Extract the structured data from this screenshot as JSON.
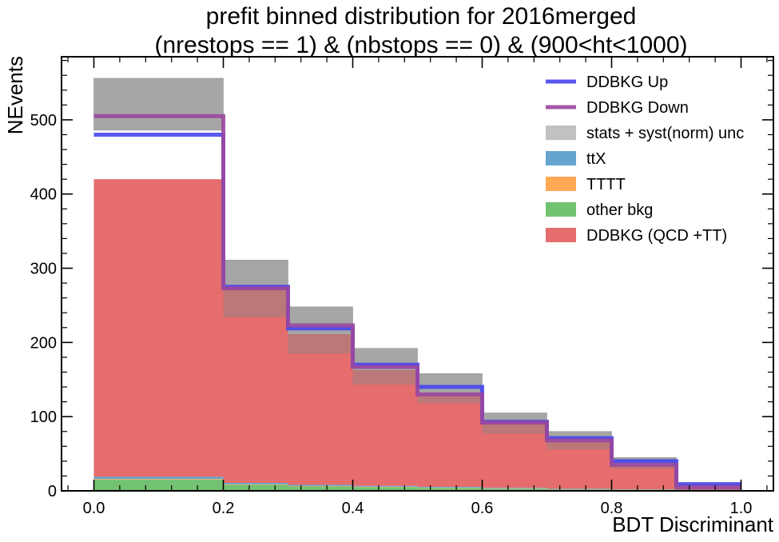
{
  "chart_data": {
    "type": "bar",
    "title_line1": "prefit binned distribution for 2016merged",
    "title_line2": "(nrestops == 1) & (nbstops == 0) & (900<ht<1000)",
    "xlabel": "BDT Discriminant",
    "ylabel": "NEvents",
    "xlim": [
      -0.05,
      1.05
    ],
    "ylim": [
      0,
      585
    ],
    "xticks": [
      0.0,
      0.2,
      0.4,
      0.6,
      0.8,
      1.0
    ],
    "xtick_labels": [
      "0.0",
      "0.2",
      "0.4",
      "0.6",
      "0.8",
      "1.0"
    ],
    "yticks": [
      0,
      100,
      200,
      300,
      400,
      500
    ],
    "ytick_labels": [
      "0",
      "100",
      "200",
      "300",
      "400",
      "500"
    ],
    "bin_edges": [
      0.0,
      0.2,
      0.3,
      0.4,
      0.5,
      0.6,
      0.7,
      0.8,
      0.9,
      1.0
    ],
    "legend_position": "top-right",
    "stack": [
      {
        "name": "other bkg",
        "color": "#6cc06c",
        "values": [
          15,
          8,
          6,
          5,
          4,
          3,
          2,
          1.5,
          0.8
        ]
      },
      {
        "name": "TTTT",
        "color": "#ffa64d",
        "values": [
          1,
          0.8,
          0.6,
          0.5,
          0.4,
          0.3,
          0.2,
          0.1,
          0.05
        ]
      },
      {
        "name": "ttX",
        "color": "#5fa0ca",
        "values": [
          3,
          2,
          1.5,
          1.2,
          1,
          0.8,
          0.6,
          0.4,
          0.2
        ]
      },
      {
        "name": "DDBKG (QCD +TT)",
        "color": "#e46767",
        "values": [
          401,
          262,
          203,
          156,
          126,
          88,
          64,
          32,
          3
        ]
      }
    ],
    "uncertainty": {
      "name": "stats + syst(norm) unc",
      "color": "#bebebe",
      "low": [
        486,
        234,
        185,
        143,
        118,
        77,
        56,
        30,
        1
      ],
      "high": [
        556,
        311,
        248,
        192,
        158,
        105,
        80,
        45,
        9
      ]
    },
    "lines": [
      {
        "name": "DDBKG Up",
        "color": "#4646ee",
        "values": [
          480,
          275,
          219,
          170,
          140,
          93,
          71,
          40,
          9
        ]
      },
      {
        "name": "DDBKG Down",
        "color": "#9a479e",
        "values": [
          505,
          273,
          223,
          167,
          130,
          92,
          68,
          35,
          5
        ]
      }
    ],
    "legend": [
      {
        "label": "DDBKG Up",
        "kind": "line",
        "color": "#4646ee"
      },
      {
        "label": "DDBKG Down",
        "kind": "line",
        "color": "#9a479e"
      },
      {
        "label": "stats + syst(norm) unc",
        "kind": "patch",
        "color": "#bebebe"
      },
      {
        "label": "ttX",
        "kind": "patch",
        "color": "#5fa0ca"
      },
      {
        "label": "TTTT",
        "kind": "patch",
        "color": "#ffa64d"
      },
      {
        "label": "other bkg",
        "kind": "patch",
        "color": "#6cc06c"
      },
      {
        "label": "DDBKG (QCD +TT)",
        "kind": "patch",
        "color": "#e46767"
      }
    ]
  }
}
